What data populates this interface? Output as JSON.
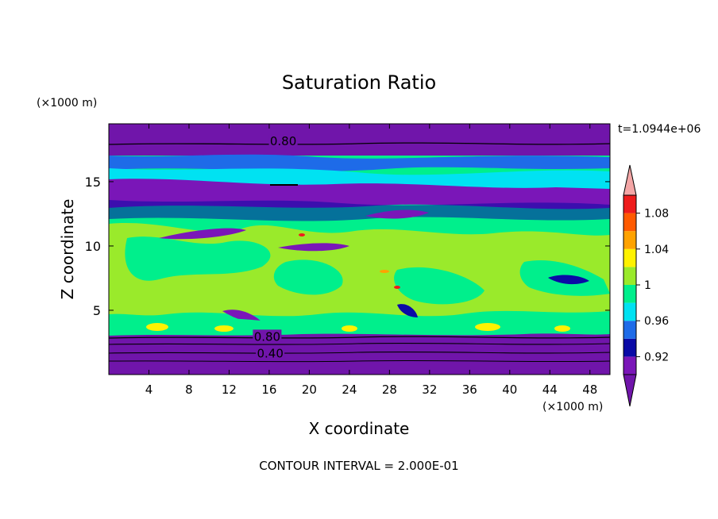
{
  "chart_data": {
    "type": "heatmap",
    "title": "Saturation Ratio",
    "xlabel": "X coordinate",
    "ylabel": "Z coordinate",
    "x_unit": "(×1000 m)",
    "y_unit": "(×1000 m)",
    "time_label": "t=1.0944e+06",
    "footer": "CONTOUR INTERVAL = 2.000E-01",
    "xlim": [
      0,
      50
    ],
    "ylim": [
      0,
      19.5
    ],
    "x_ticks": [
      "4",
      "8",
      "12",
      "16",
      "20",
      "24",
      "28",
      "32",
      "36",
      "40",
      "44",
      "48"
    ],
    "x_tick_values": [
      4,
      8,
      12,
      16,
      20,
      24,
      28,
      32,
      36,
      40,
      44,
      48
    ],
    "y_ticks": [
      "5",
      "10",
      "15"
    ],
    "y_tick_values": [
      5,
      10,
      15
    ],
    "contour_labels": [
      {
        "text": "0.80",
        "x": 17.4,
        "z": 18.2
      },
      {
        "text": "0.80",
        "x": 15.8,
        "z": 3.0
      },
      {
        "text": "0.40",
        "x": 16.1,
        "z": 1.7
      }
    ],
    "colorbar": {
      "tick_labels": [
        "0.92",
        "0.96",
        "1",
        "1.04",
        "1.08"
      ],
      "bins": [
        {
          "max": 0.9,
          "color": "#7015aa"
        },
        {
          "min": 0.9,
          "max": 0.92,
          "color": "#7a16b8"
        },
        {
          "min": 0.92,
          "max": 0.94,
          "color": "#0a0aa6"
        },
        {
          "min": 0.94,
          "max": 0.96,
          "color": "#1e6be8"
        },
        {
          "min": 0.96,
          "max": 0.98,
          "color": "#00e2f2"
        },
        {
          "min": 0.98,
          "max": 1.0,
          "color": "#00ef8c"
        },
        {
          "min": 1.0,
          "max": 1.02,
          "color": "#9aea2b"
        },
        {
          "min": 1.02,
          "max": 1.04,
          "color": "#fff200"
        },
        {
          "min": 1.04,
          "max": 1.06,
          "color": "#ffa200"
        },
        {
          "min": 1.06,
          "max": 1.08,
          "color": "#ff5a00"
        },
        {
          "min": 1.08,
          "max": 1.1,
          "color": "#ee1c1c"
        },
        {
          "min": 1.1,
          "color": "#f4a6a6"
        }
      ]
    },
    "field": [
      {
        "z_min": 0.0,
        "z_max": 3.2,
        "value_range": "0.4–0.9"
      },
      {
        "z_min": 3.2,
        "z_max": 4.5,
        "value_range": "0.98–1.08"
      },
      {
        "z_min": 4.5,
        "z_max": 13.0,
        "value_range": "0.96–1.02"
      },
      {
        "z_min": 13.0,
        "z_max": 17.2,
        "value_range": "0.9–1.0"
      },
      {
        "z_min": 17.2,
        "z_max": 19.5,
        "value_range": "<0.9"
      }
    ]
  }
}
